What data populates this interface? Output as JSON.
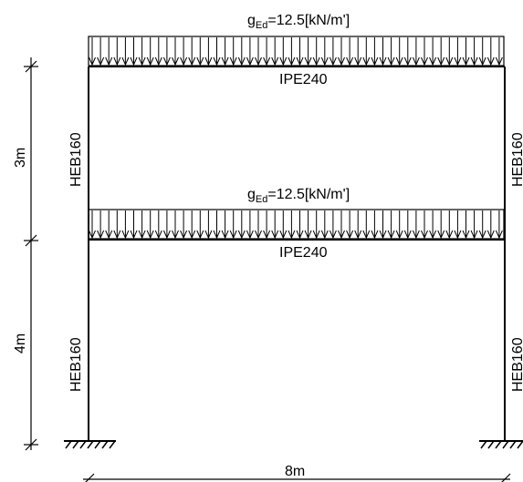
{
  "loads": [
    {
      "symbol": "g",
      "subscript": "Ed",
      "value_text": "=12.5[kN/m']"
    },
    {
      "symbol": "g",
      "subscript": "Ed",
      "value_text": "=12.5[kN/m']"
    }
  ],
  "beams": [
    {
      "section": "IPE240"
    },
    {
      "section": "IPE240"
    }
  ],
  "columns": {
    "upper_left": "HEB160",
    "upper_right": "HEB160",
    "lower_left": "HEB160",
    "lower_right": "HEB160"
  },
  "dimensions": {
    "upper_storey_height": "3m",
    "lower_storey_height": "4m",
    "span": "8m"
  }
}
